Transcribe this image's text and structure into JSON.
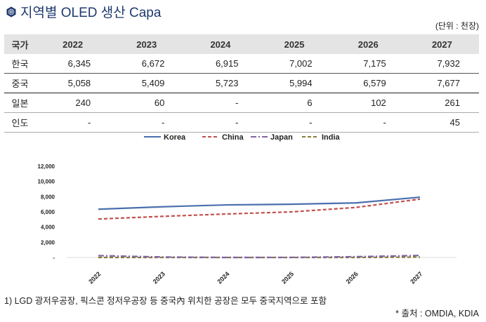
{
  "header": {
    "title": "지역별 OLED 생산 Capa",
    "icon": "globe-hexagon-icon",
    "unit": "(단위 : 천장)"
  },
  "table": {
    "columns": [
      "국가",
      "2022",
      "2023",
      "2024",
      "2025",
      "2026",
      "2027"
    ],
    "rows": [
      [
        "한국",
        "6,345",
        "6,672",
        "6,915",
        "7,002",
        "7,175",
        "7,932"
      ],
      [
        "중국",
        "5,058",
        "5,409",
        "5,723",
        "5,994",
        "6,579",
        "7,677"
      ],
      [
        "일본",
        "240",
        "60",
        "-",
        "6",
        "102",
        "261"
      ],
      [
        "인도",
        "-",
        "-",
        "-",
        "-",
        "-",
        "45"
      ]
    ]
  },
  "chart_data": {
    "type": "line",
    "x": [
      "2022",
      "2023",
      "2024",
      "2025",
      "2026",
      "2027"
    ],
    "series": [
      {
        "name": "Korea",
        "values": [
          6345,
          6672,
          6915,
          7002,
          7175,
          7932
        ],
        "color": "#4a6fae",
        "dash": "solid"
      },
      {
        "name": "China",
        "values": [
          5058,
          5409,
          5723,
          5994,
          6579,
          7677
        ],
        "color": "#c0504d",
        "dash": "dashed"
      },
      {
        "name": "Japan",
        "values": [
          240,
          60,
          0,
          6,
          102,
          261
        ],
        "color": "#8064a2",
        "dash": "dash-dot"
      },
      {
        "name": "India",
        "values": [
          0,
          0,
          0,
          0,
          0,
          45
        ],
        "color": "#8a7a3a",
        "dash": "dashed"
      }
    ],
    "ylim": [
      0,
      12000
    ],
    "yticks": [
      "-",
      "2,000",
      "4,000",
      "6,000",
      "8,000",
      "10,000",
      "12,000"
    ],
    "grid": false,
    "legend": "top"
  },
  "footer": {
    "note": "1) LGD 광저우공장, 픽스콘 정저우공장 등 중국內 위치한 공장은 모두 중국지역으로 포함",
    "source": "* 출처 : OMDIA, KDIA"
  }
}
